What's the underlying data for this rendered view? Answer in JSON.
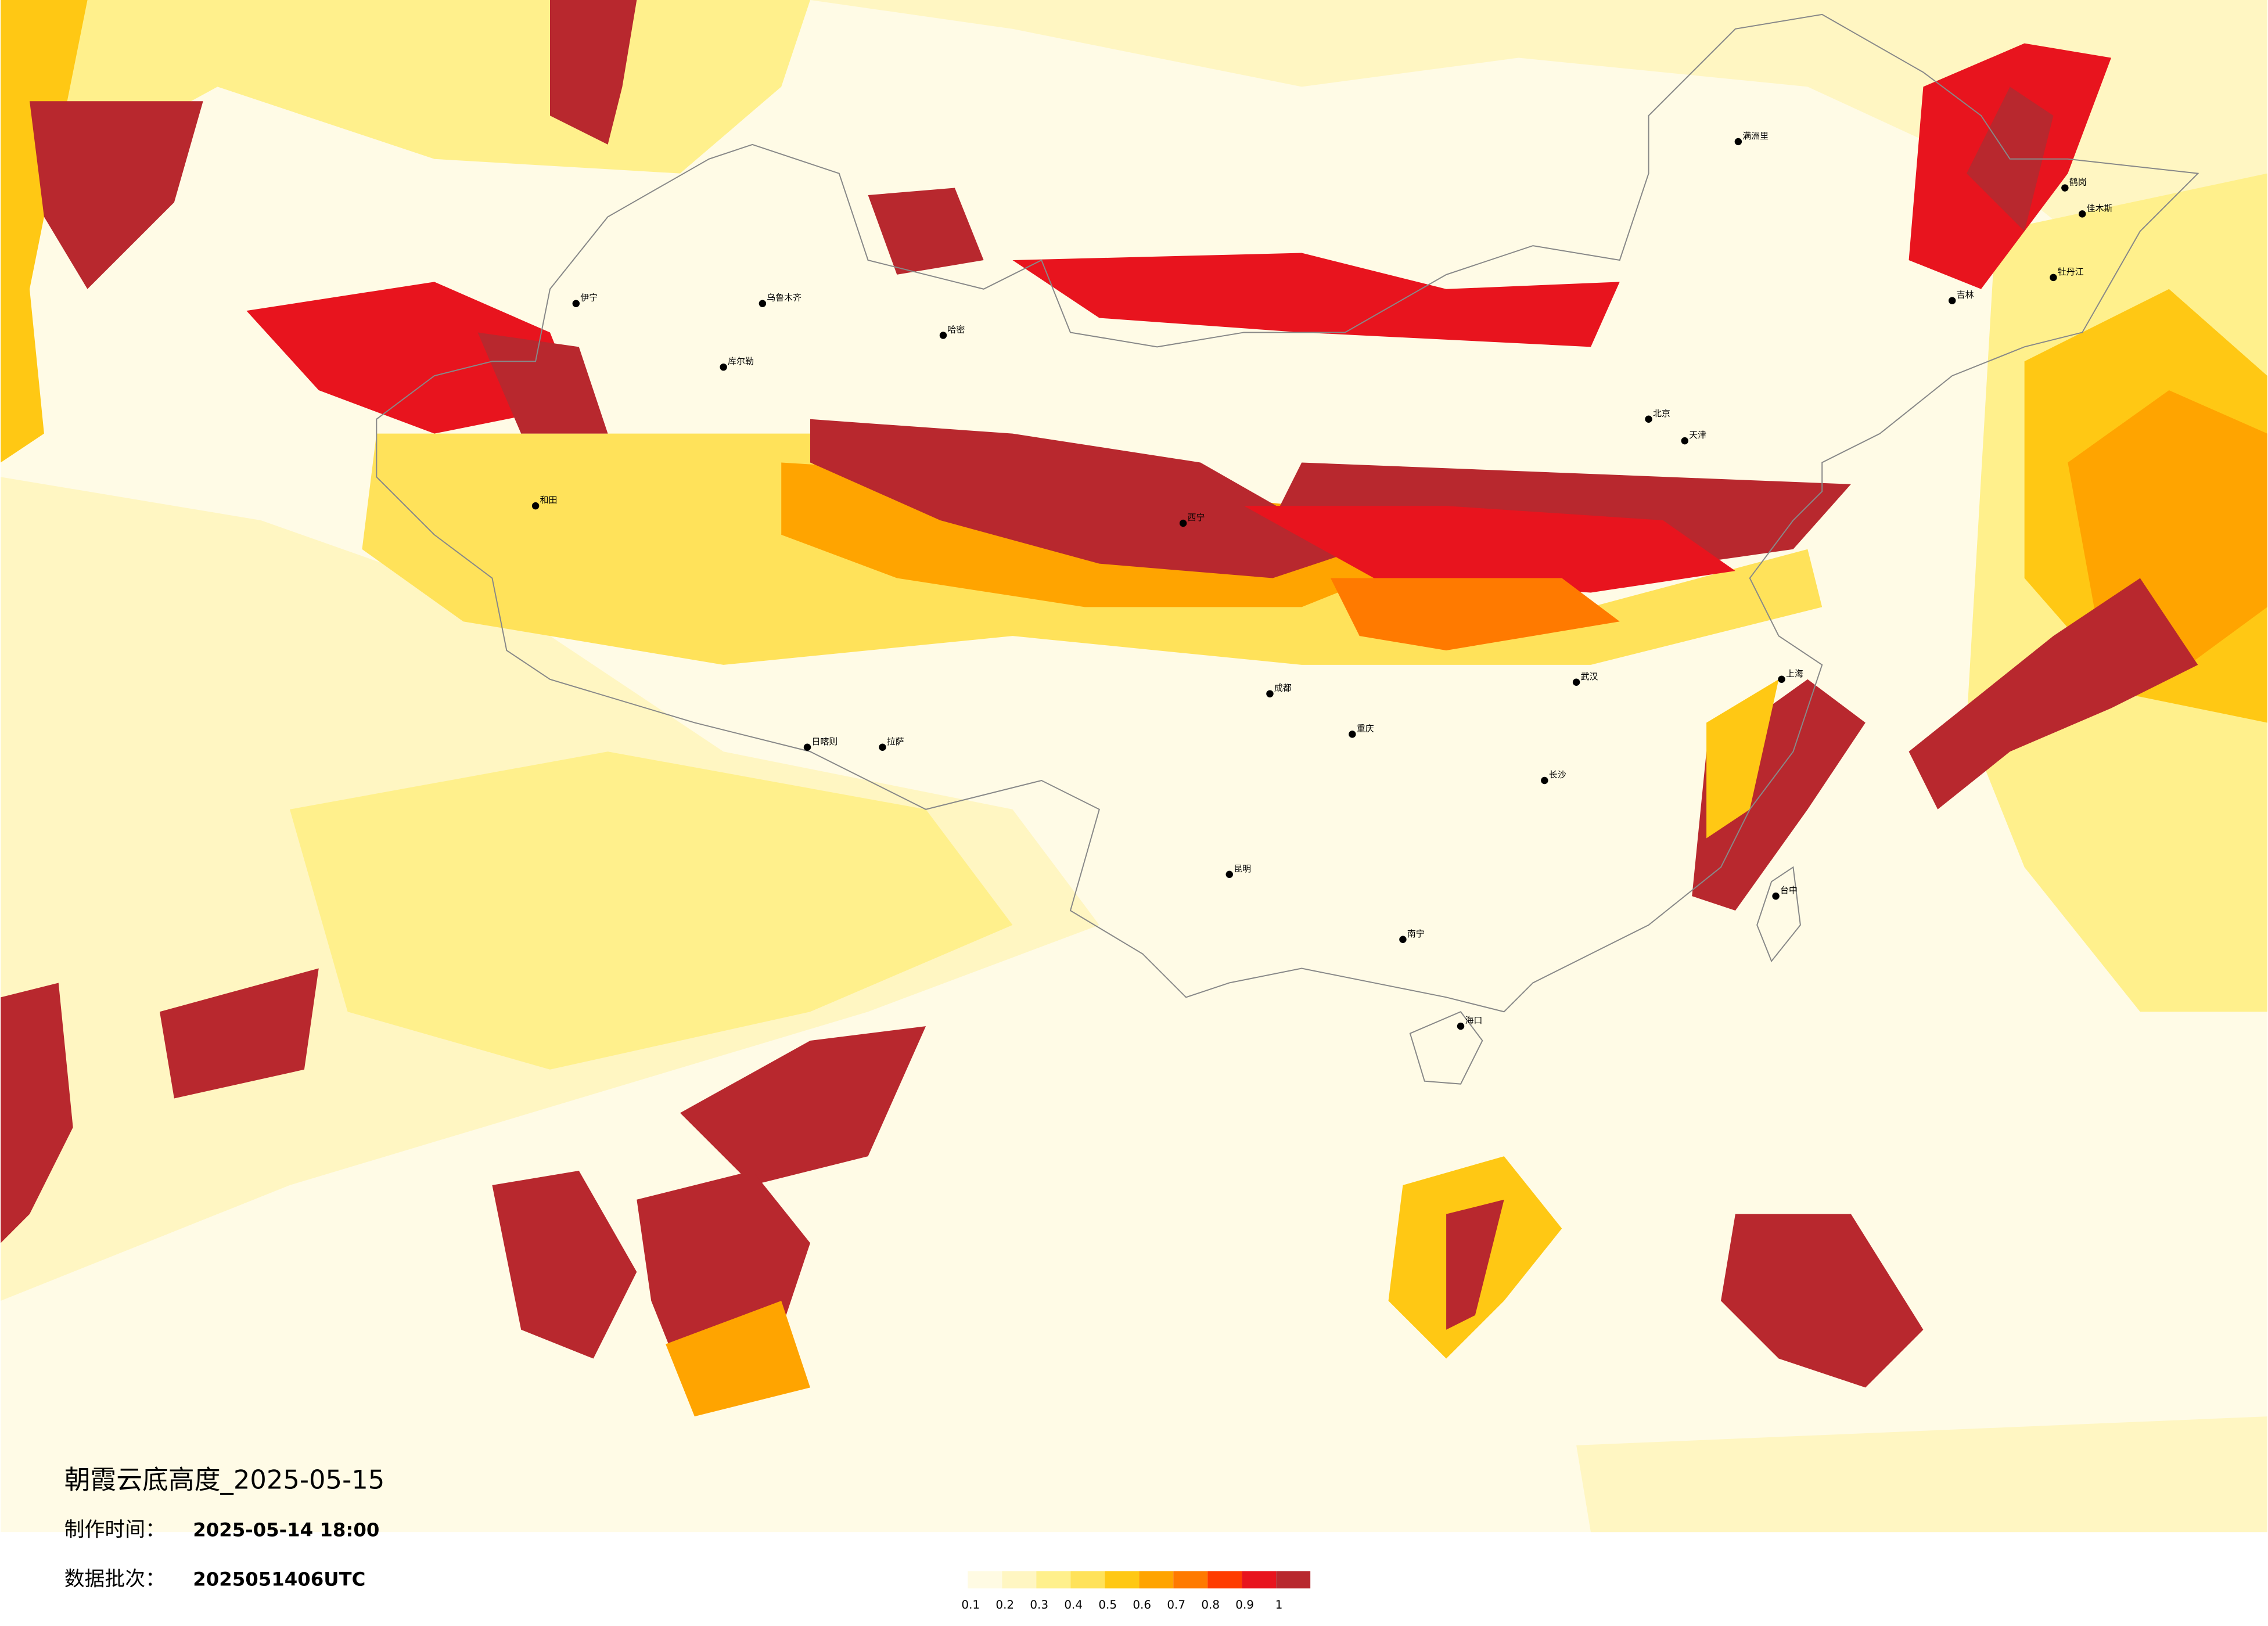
{
  "title": "朝霞云底高度_2025-05-15",
  "info": [
    {
      "label": "制作时间：",
      "value": "2025-05-14 18:00"
    },
    {
      "label": "数据批次：",
      "value": "2025051406UTC"
    }
  ],
  "colorbar": {
    "colors": [
      "#fffbe3",
      "#fff6c2",
      "#fff08c",
      "#ffe25a",
      "#ffc814",
      "#ffa400",
      "#ff7a00",
      "#ff3c00",
      "#e8141e",
      "#b8282e"
    ],
    "ticks": [
      {
        "value": 0.1,
        "label": "0.1"
      },
      {
        "value": 0.2,
        "label": "0.2"
      },
      {
        "value": 0.3,
        "label": "0.3"
      },
      {
        "value": 0.4,
        "label": "0.4"
      },
      {
        "value": 0.5,
        "label": "0.5"
      },
      {
        "value": 0.6,
        "label": "0.6"
      },
      {
        "value": 0.7,
        "label": "0.7"
      },
      {
        "value": 0.8,
        "label": "0.8"
      },
      {
        "value": 0.9,
        "label": "0.9"
      },
      {
        "value": 1,
        "label": "1"
      }
    ]
  },
  "cities": [
    {
      "name": "北京"
    },
    {
      "name": "天津"
    },
    {
      "name": "上海"
    },
    {
      "name": "武汉"
    },
    {
      "name": "长沙"
    },
    {
      "name": "重庆"
    },
    {
      "name": "成都"
    },
    {
      "name": "昆明"
    },
    {
      "name": "拉萨"
    },
    {
      "name": "乌鲁木齐"
    },
    {
      "name": "哈密"
    },
    {
      "name": "库尔勒"
    },
    {
      "name": "和田"
    },
    {
      "name": "伊宁"
    },
    {
      "name": "日喀则"
    },
    {
      "name": "西宁"
    },
    {
      "name": "南宁"
    },
    {
      "name": "海口"
    },
    {
      "name": "台中"
    },
    {
      "name": "佳木斯"
    },
    {
      "name": "鹤岗"
    },
    {
      "name": "牡丹江"
    },
    {
      "name": "吉林"
    },
    {
      "name": "满洲里"
    }
  ]
}
